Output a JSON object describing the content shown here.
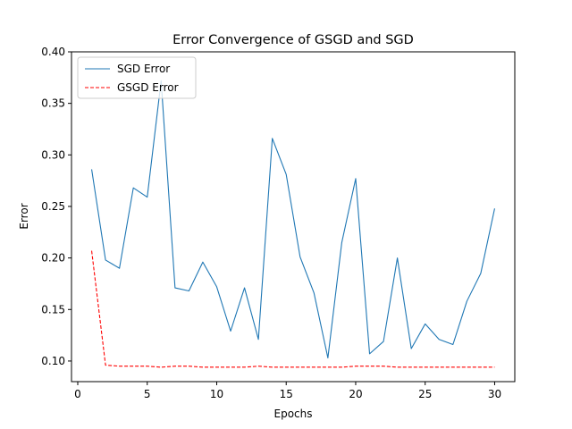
{
  "chart_data": {
    "type": "line",
    "title": "Error Convergence of GSGD and SGD",
    "xlabel": "Epochs",
    "ylabel": "Error",
    "xlim": [
      -0.45,
      31.45
    ],
    "ylim": [
      0.08,
      0.4
    ],
    "xticks": [
      0,
      5,
      10,
      15,
      20,
      25,
      30
    ],
    "yticks": [
      0.1,
      0.15,
      0.2,
      0.25,
      0.3,
      0.35,
      0.4
    ],
    "grid": false,
    "legend_position": "top-left",
    "x": [
      1,
      2,
      3,
      4,
      5,
      6,
      7,
      8,
      9,
      10,
      11,
      12,
      13,
      14,
      15,
      16,
      17,
      18,
      19,
      20,
      21,
      22,
      23,
      24,
      25,
      26,
      27,
      28,
      29,
      30
    ],
    "series": [
      {
        "name": "SGD Error",
        "color": "#1f77b4",
        "style": "solid",
        "values": [
          0.286,
          0.198,
          0.19,
          0.268,
          0.259,
          0.372,
          0.171,
          0.168,
          0.196,
          0.172,
          0.129,
          0.171,
          0.121,
          0.316,
          0.281,
          0.201,
          0.166,
          0.103,
          0.215,
          0.277,
          0.107,
          0.119,
          0.2,
          0.112,
          0.136,
          0.121,
          0.116,
          0.158,
          0.185,
          0.248
        ]
      },
      {
        "name": "GSGD Error",
        "color": "#ff0000",
        "style": "dashed",
        "values": [
          0.207,
          0.096,
          0.095,
          0.095,
          0.095,
          0.094,
          0.095,
          0.095,
          0.094,
          0.094,
          0.094,
          0.094,
          0.095,
          0.094,
          0.094,
          0.094,
          0.094,
          0.094,
          0.094,
          0.095,
          0.095,
          0.095,
          0.094,
          0.094,
          0.094,
          0.094,
          0.094,
          0.094,
          0.094,
          0.094
        ]
      }
    ]
  }
}
